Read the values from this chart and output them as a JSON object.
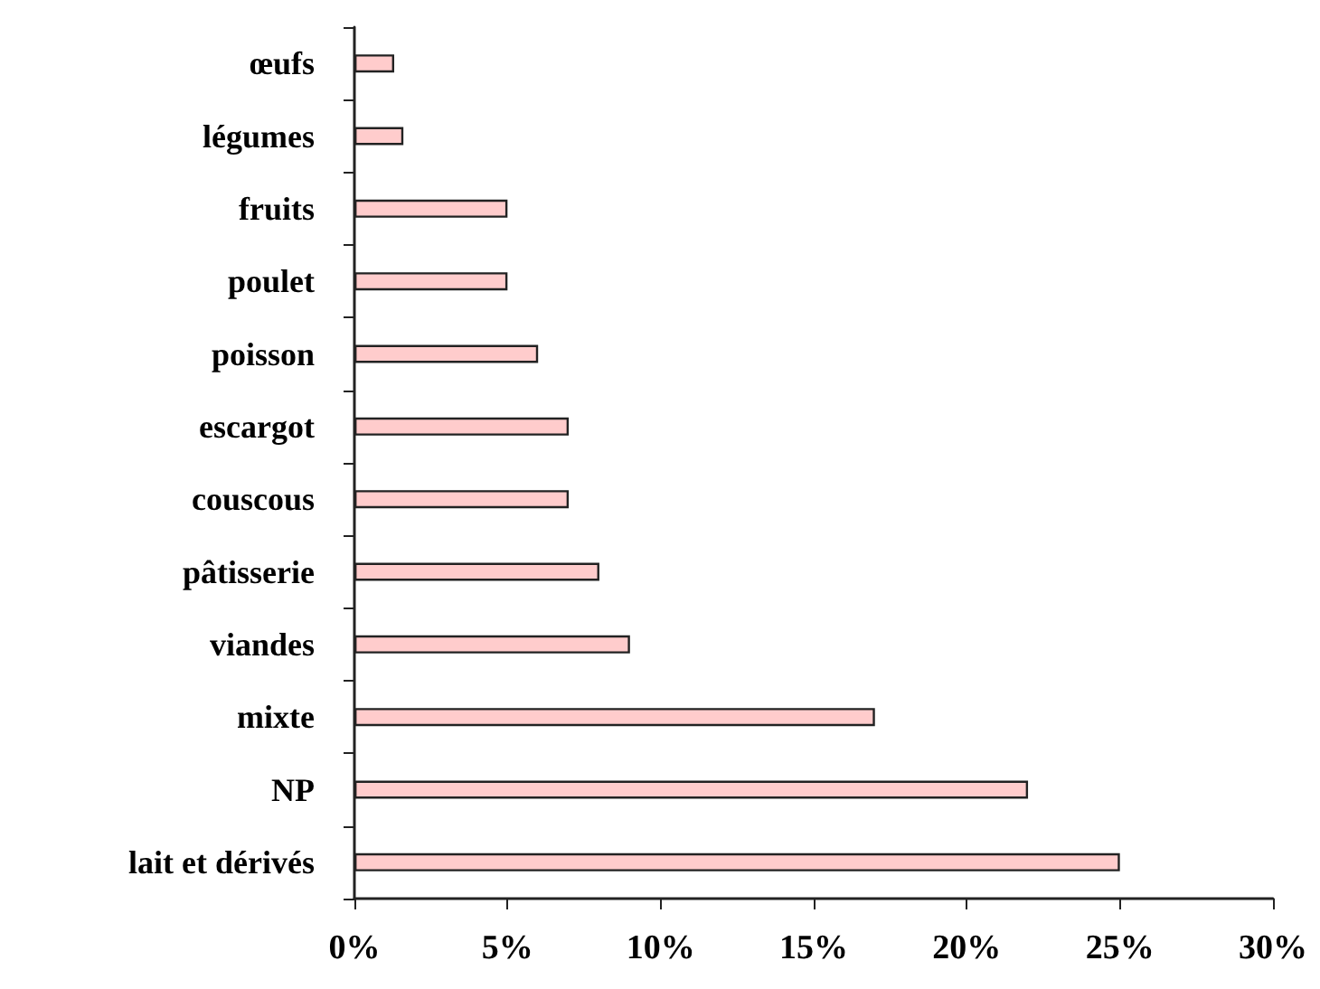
{
  "chart_data": {
    "type": "bar",
    "orientation": "horizontal",
    "categories": [
      "œufs",
      "légumes",
      "fruits",
      "poulet",
      "poisson",
      "escargot",
      "couscous",
      "pâtisserie",
      "viandes",
      "mixte",
      "NP",
      "lait et dérivés"
    ],
    "values": [
      1.3,
      1.6,
      5,
      5,
      6,
      7,
      7,
      8,
      9,
      17,
      22,
      25
    ],
    "color": "#ffcccc",
    "xlim": [
      0,
      30
    ],
    "xticks": [
      {
        "value": 0,
        "label": "0%"
      },
      {
        "value": 5,
        "label": "5%"
      },
      {
        "value": 10,
        "label": "10%"
      },
      {
        "value": 15,
        "label": "15%"
      },
      {
        "value": 20,
        "label": "20%"
      },
      {
        "value": 25,
        "label": "25%"
      },
      {
        "value": 30,
        "label": "30%"
      }
    ],
    "grid": false
  }
}
